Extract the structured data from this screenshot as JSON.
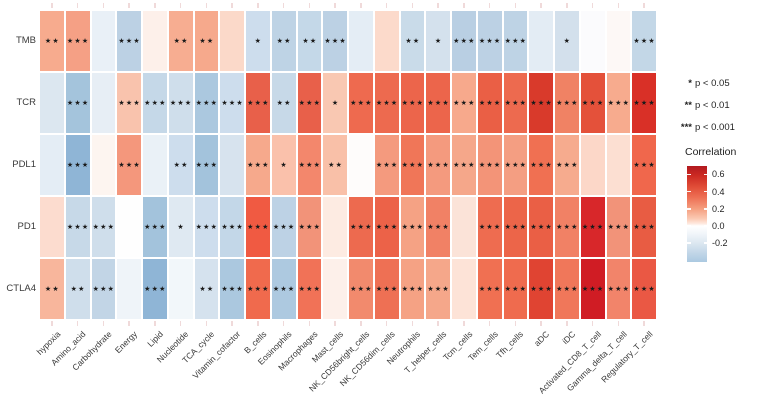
{
  "figure": {
    "background": "#ffffff"
  },
  "chart_data": {
    "type": "heatmap",
    "title": "",
    "rows": [
      "TMB",
      "TCR",
      "PDL1",
      "PD1",
      "CTLA4"
    ],
    "columns": [
      "hypoxia",
      "Amino_acid",
      "Carbohydrate",
      "Energy",
      "Lipid",
      "Nucleotide",
      "TCA_cycle",
      "Vitamin_cofactor",
      "B_cells",
      "Eosinophils",
      "Macrophages",
      "Mast_cells",
      "NK_CD56bright_cells",
      "NK_CD56dim_cells",
      "Neutrophils",
      "T_helper_cells",
      "Tcm_cells",
      "Tem_cells",
      "Tfh_cells",
      "aDC",
      "iDC",
      "Activated_CD8_T_cell",
      "Gamma_delta_T_cell",
      "Regulatory_T_cell"
    ],
    "stars": [
      [
        "**",
        "***",
        "",
        "***",
        "",
        "**",
        "**",
        "",
        "*",
        "**",
        "**",
        "***",
        "",
        "",
        "**",
        "*",
        "***",
        "***",
        "***",
        "",
        "*",
        "",
        "",
        "***"
      ],
      [
        "",
        "***",
        "",
        "***",
        "***",
        "***",
        "***",
        "***",
        "***",
        "**",
        "***",
        "*",
        "***",
        "***",
        "***",
        "***",
        "***",
        "***",
        "***",
        "***",
        "***",
        "***",
        "***",
        "***"
      ],
      [
        "",
        "***",
        "",
        "***",
        "",
        "**",
        "***",
        "",
        "***",
        "*",
        "***",
        "**",
        "",
        "***",
        "***",
        "***",
        "***",
        "***",
        "***",
        "***",
        "***",
        "",
        "",
        "***"
      ],
      [
        "",
        "***",
        "***",
        "",
        "***",
        "*",
        "***",
        "***",
        "***",
        "***",
        "***",
        "",
        "***",
        "***",
        "***",
        "***",
        "",
        "***",
        "***",
        "***",
        "***",
        "***",
        "***",
        "***"
      ],
      [
        "**",
        "**",
        "***",
        "",
        "***",
        "",
        "**",
        "***",
        "***",
        "***",
        "***",
        "",
        "***",
        "***",
        "***",
        "***",
        "",
        "***",
        "***",
        "***",
        "***",
        "***",
        "***",
        "***"
      ]
    ],
    "cell_colors": [
      [
        "#f7ab8e",
        "#f5a085",
        "#e9f0f7",
        "#bcd1e4",
        "#fdf0ea",
        "#f7ad91",
        "#f6a98c",
        "#fbd9c9",
        "#cddded",
        "#bed3e5",
        "#c4d8e8",
        "#bcd1e4",
        "#e4edf5",
        "#fcdacb",
        "#c9dbe9",
        "#d4e1ed",
        "#b9cfe3",
        "#bcd1e4",
        "#bed3e5",
        "#e3ecf4",
        "#d3e0ec",
        "#fbfbfd",
        "#fdf8f6",
        "#c3d7e7"
      ],
      [
        "#dce7f0",
        "#a4c4dc",
        "#e7eef5",
        "#f9c3ad",
        "#c5d8e8",
        "#cfdeeb",
        "#abc8df",
        "#cddded",
        "#e8604a",
        "#c7d9e8",
        "#e8604a",
        "#f9c8b2",
        "#ee6a4f",
        "#ed6a4f",
        "#ec654b",
        "#ec654b",
        "#f7a98c",
        "#ea5f45",
        "#ed6a4f",
        "#d93a2b",
        "#f08264",
        "#e4513a",
        "#f7ab8e",
        "#d93027"
      ],
      [
        "#e4edf5",
        "#8fb5d6",
        "#fdf5f0",
        "#f4977c",
        "#eaf1f7",
        "#cddded",
        "#a3c3dc",
        "#d7e3ee",
        "#f6a98c",
        "#fac1ab",
        "#f3876c",
        "#f9c0a8",
        "#fefcfb",
        "#f49a7e",
        "#f07658",
        "#f49a7e",
        "#f5a78a",
        "#f39478",
        "#f49e82",
        "#f07052",
        "#f6ab8e",
        "#fcd7c8",
        "#fcdfd2",
        "#f0674c"
      ],
      [
        "#fcdccf",
        "#c7d9e8",
        "#cfdeeb",
        "#fefefe",
        "#a3c3dc",
        "#dfe9f2",
        "#cddded",
        "#c3d7e8",
        "#f05a42",
        "#bdd2e5",
        "#f29379",
        "#fdebe2",
        "#ed6a4f",
        "#ec6248",
        "#f5a284",
        "#f18165",
        "#fbe3d8",
        "#ee6c50",
        "#ec6549",
        "#ea5f45",
        "#f18165",
        "#d8272a",
        "#f29379",
        "#e85c43"
      ],
      [
        "#f8b69c",
        "#cfdeeb",
        "#c2d5e6",
        "#eff4f9",
        "#8fb5d6",
        "#f2f7fa",
        "#d5e2ee",
        "#abc8df",
        "#f06a4d",
        "#adc9e0",
        "#f17257",
        "#fdf0ea",
        "#f28a6d",
        "#ee7054",
        "#f5a284",
        "#f5a78a",
        "#fde3d7",
        "#f07052",
        "#ef6b4e",
        "#e04432",
        "#f0775a",
        "#d01c24",
        "#f2846a",
        "#ea5844"
      ]
    ],
    "values_approx": [
      [
        0.28,
        0.3,
        -0.05,
        -0.2,
        0.03,
        0.28,
        0.28,
        0.12,
        -0.15,
        -0.2,
        -0.18,
        -0.2,
        -0.08,
        0.12,
        -0.17,
        -0.13,
        -0.22,
        -0.2,
        -0.2,
        -0.07,
        -0.13,
        0.0,
        0.02,
        -0.18
      ],
      [
        -0.1,
        -0.27,
        -0.07,
        0.2,
        -0.17,
        -0.15,
        -0.25,
        -0.15,
        0.5,
        -0.17,
        0.5,
        0.18,
        0.45,
        0.45,
        0.47,
        0.47,
        0.28,
        0.48,
        0.45,
        0.58,
        0.38,
        0.53,
        0.27,
        0.6
      ],
      [
        -0.08,
        -0.35,
        0.05,
        0.33,
        -0.06,
        -0.15,
        -0.28,
        -0.12,
        0.28,
        0.22,
        0.33,
        0.23,
        0.01,
        0.31,
        0.4,
        0.31,
        0.28,
        0.33,
        0.3,
        0.42,
        0.27,
        0.14,
        0.12,
        0.45
      ],
      [
        0.13,
        -0.17,
        -0.15,
        0.0,
        -0.28,
        -0.1,
        -0.15,
        -0.18,
        0.52,
        -0.2,
        0.35,
        0.07,
        0.45,
        0.47,
        0.3,
        0.38,
        0.1,
        0.45,
        0.46,
        0.47,
        0.38,
        0.62,
        0.35,
        0.5
      ],
      [
        0.25,
        -0.15,
        -0.18,
        -0.04,
        -0.35,
        -0.03,
        -0.12,
        -0.25,
        0.46,
        -0.25,
        0.42,
        0.07,
        0.38,
        0.44,
        0.3,
        0.28,
        0.1,
        0.42,
        0.45,
        0.55,
        0.4,
        0.65,
        0.36,
        0.52
      ]
    ],
    "legend_position": "right",
    "grid": "off"
  },
  "legend": {
    "significance": [
      {
        "stars": "*",
        "label": "p < 0.05"
      },
      {
        "stars": "**",
        "label": "p < 0.01"
      },
      {
        "stars": "***",
        "label": "p < 0.001"
      }
    ],
    "correlation": {
      "title": "Correlation",
      "tick_labels": [
        "0.6",
        "0.4",
        "0.2",
        "0.0",
        "-0.2"
      ],
      "tick_values": [
        0.6,
        0.4,
        0.2,
        0.0,
        -0.2
      ],
      "scale_top_color": "#b2191f",
      "scale_zero_color": "#ffffff",
      "scale_bottom_color": "#abc9e1"
    }
  }
}
